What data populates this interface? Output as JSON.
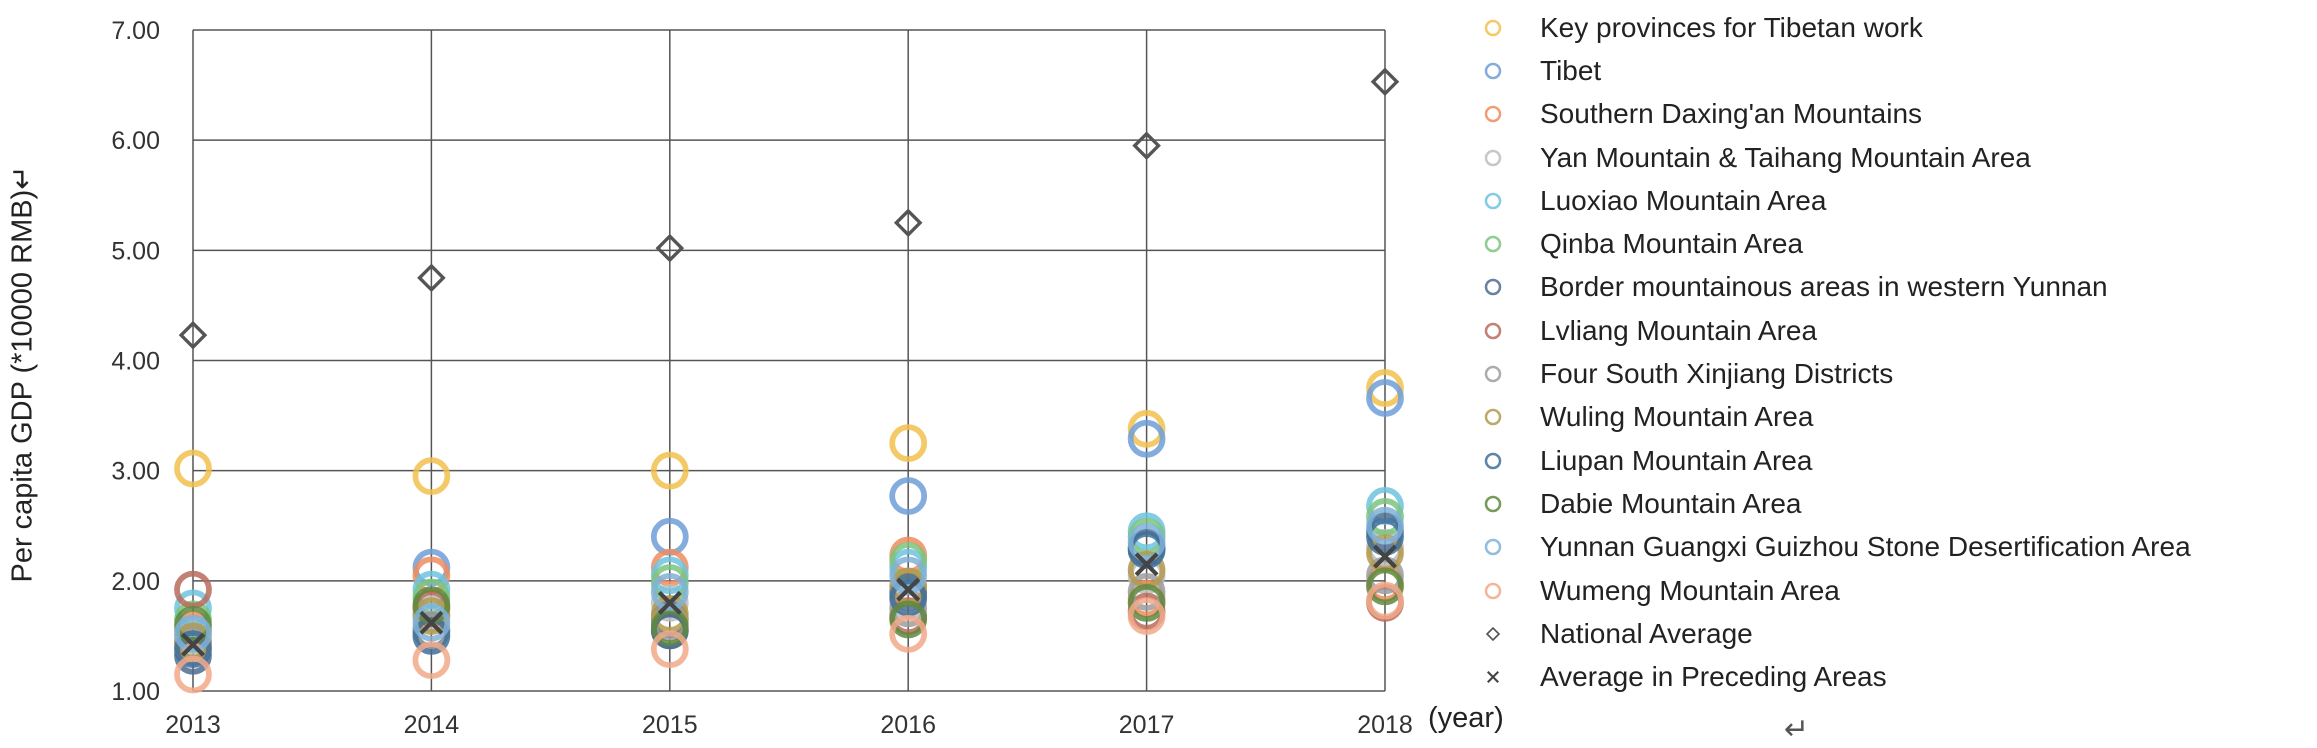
{
  "chart_data": {
    "type": "scatter",
    "ylabel": "Per capita GDP (*10000 RMB)↵",
    "x_unit": "(year)",
    "x": [
      "2013",
      "2014",
      "2015",
      "2016",
      "2017",
      "2018"
    ],
    "yticks": [
      "1.00",
      "2.00",
      "3.00",
      "4.00",
      "5.00",
      "6.00",
      "7.00"
    ],
    "ylim": [
      1,
      7
    ],
    "grid": true,
    "legend_position": "right",
    "series": [
      {
        "name": "Key provinces for Tibetan work",
        "color": "#f2c14e",
        "marker": "circle",
        "values": [
          3.02,
          2.95,
          3.0,
          3.25,
          3.38,
          3.75
        ]
      },
      {
        "name": "Tibet",
        "color": "#6f9fd8",
        "marker": "circle",
        "values": [
          1.44,
          2.12,
          2.4,
          2.77,
          3.29,
          3.66
        ]
      },
      {
        "name": "Southern Daxing'an Mountains",
        "color": "#ef8c5e",
        "marker": "circle",
        "values": [
          1.55,
          2.05,
          2.12,
          2.23,
          1.84,
          1.98
        ]
      },
      {
        "name": "Yan Mountain & Taihang Mountain Area",
        "color": "#bdbdbd",
        "marker": "circle",
        "values": [
          1.5,
          1.7,
          1.8,
          1.82,
          2.05,
          2.3
        ]
      },
      {
        "name": "Luoxiao Mountain Area",
        "color": "#6fc3de",
        "marker": "circle",
        "values": [
          1.75,
          1.92,
          2.05,
          2.12,
          2.45,
          2.68
        ]
      },
      {
        "name": "Qinba Mountain Area",
        "color": "#7cc47f",
        "marker": "circle",
        "values": [
          1.65,
          1.85,
          1.98,
          2.18,
          2.4,
          2.58
        ]
      },
      {
        "name": "Border mountainous areas in western Yunnan",
        "color": "#4f6c8f",
        "marker": "circle",
        "values": [
          1.32,
          1.55,
          1.65,
          1.9,
          2.3,
          2.45
        ]
      },
      {
        "name": "Lvliang Mountain Area",
        "color": "#b86b5a",
        "marker": "circle",
        "values": [
          1.92,
          1.75,
          1.55,
          1.68,
          1.72,
          1.8
        ]
      },
      {
        "name": "Four South Xinjiang Districts",
        "color": "#9e9e9e",
        "marker": "circle",
        "values": [
          1.4,
          1.55,
          1.62,
          1.75,
          1.9,
          2.05
        ]
      },
      {
        "name": "Wuling Mountain Area",
        "color": "#b39a4f",
        "marker": "circle",
        "values": [
          1.45,
          1.68,
          1.7,
          1.95,
          2.1,
          2.25
        ]
      },
      {
        "name": "Liupan Mountain Area",
        "color": "#3f6f99",
        "marker": "circle",
        "values": [
          1.38,
          1.5,
          1.55,
          1.85,
          2.28,
          2.4
        ]
      },
      {
        "name": "Dabie Mountain Area",
        "color": "#5e8a3e",
        "marker": "circle",
        "values": [
          1.6,
          1.78,
          1.58,
          1.65,
          1.8,
          1.95
        ]
      },
      {
        "name": "Yunnan Guangxi Guizhou Stone Desertification Area",
        "color": "#7fb2d8",
        "marker": "circle",
        "values": [
          1.52,
          1.62,
          1.9,
          2.05,
          2.35,
          2.5
        ]
      },
      {
        "name": "Wumeng Mountain Area",
        "color": "#f2a98a",
        "marker": "circle",
        "values": [
          1.15,
          1.28,
          1.38,
          1.52,
          1.68,
          1.82
        ]
      },
      {
        "name": "National Average",
        "color": "#555555",
        "marker": "diamond",
        "values": [
          4.23,
          4.75,
          5.02,
          5.25,
          5.95,
          6.53
        ]
      },
      {
        "name": "Average in Preceding Areas",
        "color": "#444444",
        "marker": "x",
        "values": [
          1.42,
          1.62,
          1.8,
          1.92,
          2.15,
          2.22
        ]
      }
    ]
  },
  "corner_mark": "↵"
}
